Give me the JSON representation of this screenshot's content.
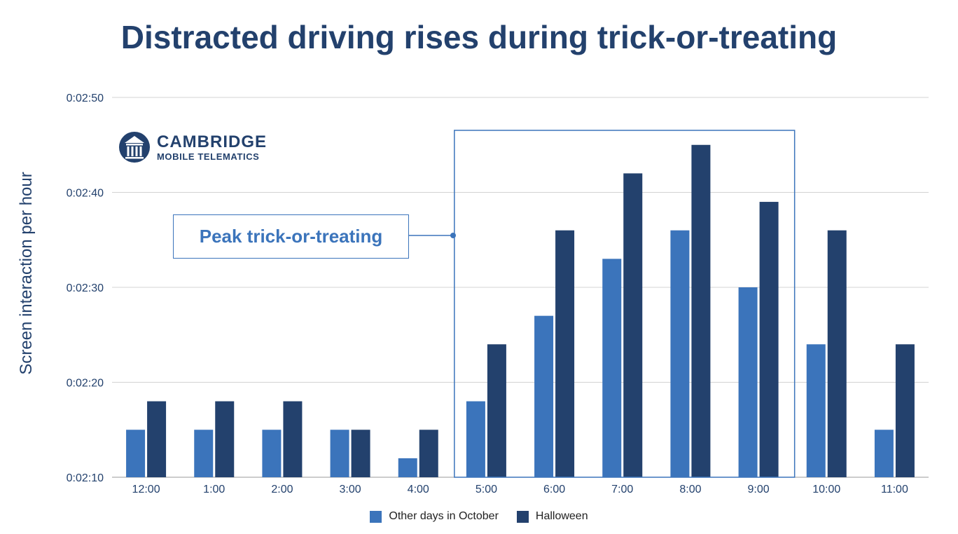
{
  "colors": {
    "other": "#3b74bb",
    "halloween": "#23416d",
    "grid": "#d3d3d3",
    "text": "#23416d"
  },
  "logo": {
    "name": "CAMBRIDGE",
    "subtitle": "MOBILE TELEMATICS",
    "icon": "columns-building-icon"
  },
  "annotation": {
    "label": "Peak trick-or-treating",
    "range_start": "5:00",
    "range_end": "9:00"
  },
  "chart_data": {
    "type": "bar",
    "title": "Distracted driving rises during trick-or-treating",
    "xlabel": "",
    "ylabel": "Screen interaction per hour",
    "y_unit": "seconds",
    "ylim": [
      130,
      170
    ],
    "yticks": [
      130,
      140,
      150,
      160,
      170
    ],
    "ytick_labels": [
      "0:02:10",
      "0:02:20",
      "0:02:30",
      "0:02:40",
      "0:02:50"
    ],
    "grid": true,
    "legend_position": "bottom",
    "categories": [
      "12:00",
      "1:00",
      "2:00",
      "3:00",
      "4:00",
      "5:00",
      "6:00",
      "7:00",
      "8:00",
      "9:00",
      "10:00",
      "11:00"
    ],
    "series": [
      {
        "name": "Other days in October",
        "values": [
          135,
          135,
          135,
          135,
          132,
          138,
          147,
          153,
          156,
          150,
          144,
          135
        ]
      },
      {
        "name": "Halloween",
        "values": [
          138,
          138,
          138,
          135,
          135,
          144,
          156,
          162,
          165,
          159,
          156,
          144
        ]
      }
    ]
  }
}
